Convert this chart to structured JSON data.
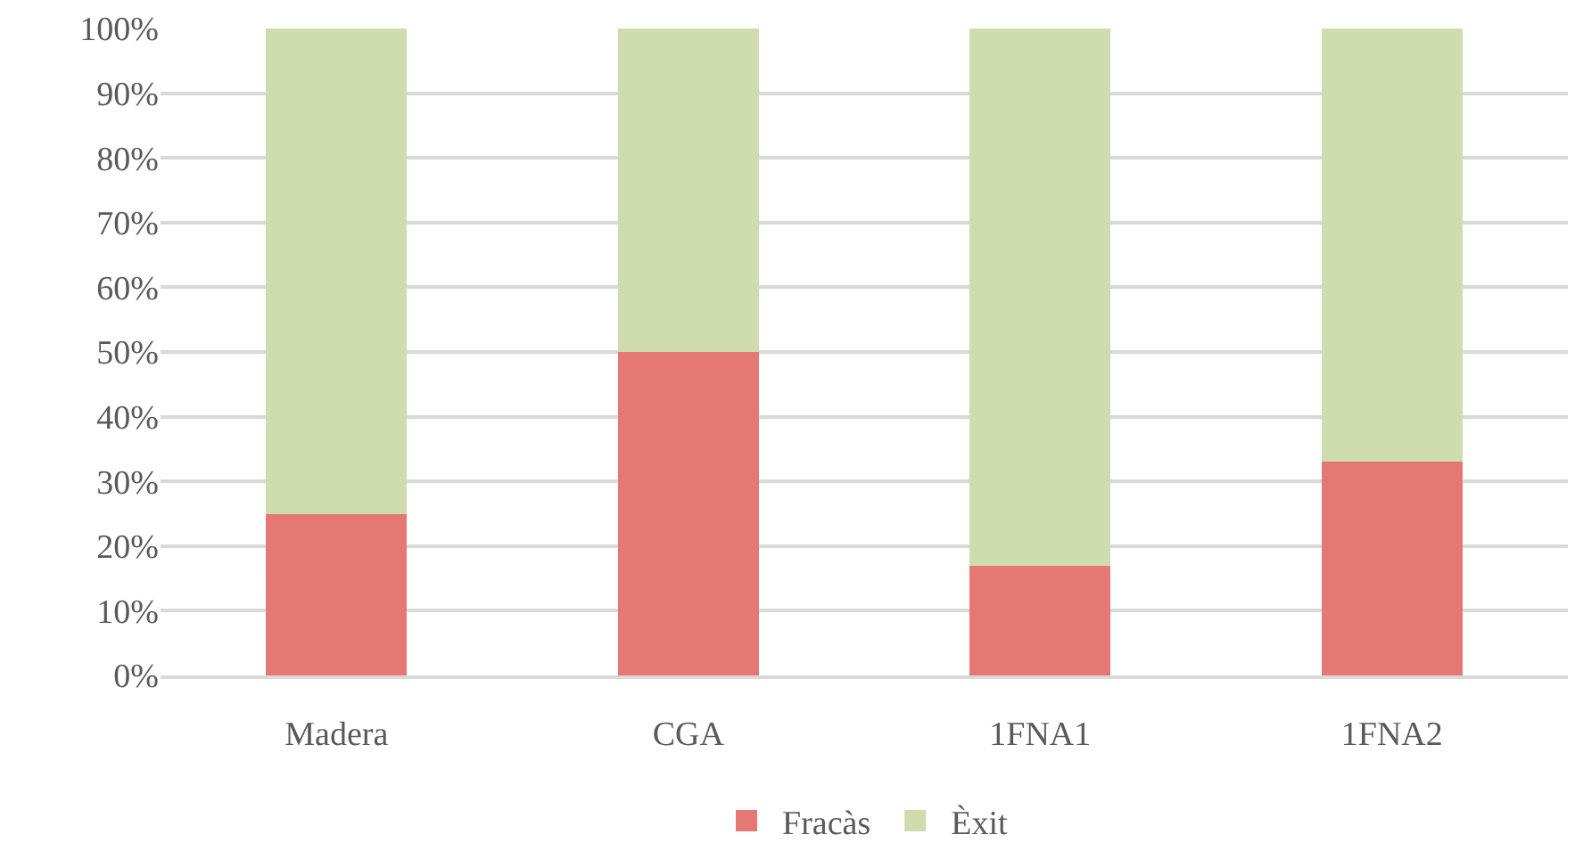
{
  "chart_data": {
    "type": "bar",
    "stacked": true,
    "categories": [
      "Madera",
      "CGA",
      "1FNA1",
      "1FNA2"
    ],
    "series": [
      {
        "name": "Fracàs",
        "color": "#e67873",
        "values": [
          25,
          50,
          17,
          33
        ]
      },
      {
        "name": "Èxit",
        "color": "#cfdcad",
        "values": [
          75,
          50,
          83,
          67
        ]
      }
    ],
    "ylim": [
      0,
      100
    ],
    "yticks": [
      {
        "value": 0,
        "label": "0%"
      },
      {
        "value": 10,
        "label": "10%"
      },
      {
        "value": 20,
        "label": "20%"
      },
      {
        "value": 30,
        "label": "30%"
      },
      {
        "value": 40,
        "label": "40%"
      },
      {
        "value": 50,
        "label": "50%"
      },
      {
        "value": 60,
        "label": "60%"
      },
      {
        "value": 70,
        "label": "70%"
      },
      {
        "value": 80,
        "label": "80%"
      },
      {
        "value": 90,
        "label": "90%"
      },
      {
        "value": 100,
        "label": "100%"
      }
    ],
    "grid": "y",
    "legend": "bottom"
  }
}
